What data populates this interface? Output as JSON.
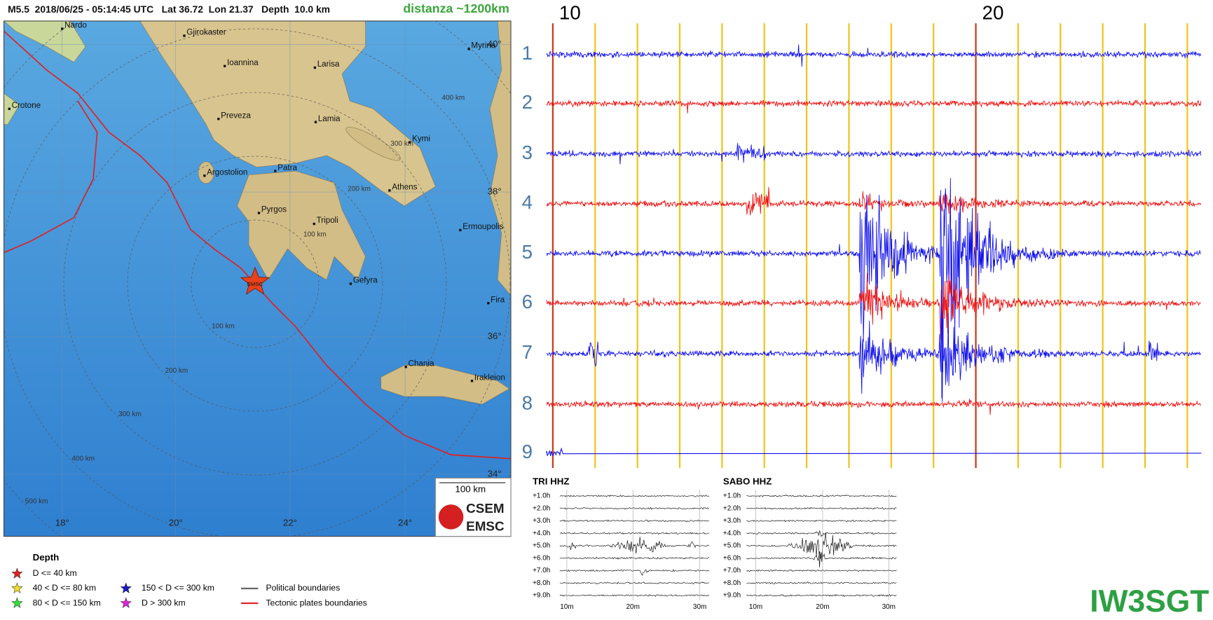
{
  "header": {
    "event": "M5.5  2018/06/25 - 05:14:45 UTC   Lat 36.72  Lon 21.37   Depth  10.0 km",
    "distance": "distanza ~1200km"
  },
  "map": {
    "cities": [
      "Nardo",
      "Gjirokaster",
      "Myrina",
      "Ioannina",
      "Larisa",
      "Crotone",
      "Preveza",
      "Lamia",
      "Kymi",
      "Argostolion",
      "Patra",
      "Athens",
      "Pyrgos",
      "Tripoli",
      "Ermoupolis",
      "Gefyra",
      "Fira",
      "Chania",
      "Irakleion"
    ],
    "lat_labels": [
      "40°",
      "38°",
      "36°",
      "34°"
    ],
    "lon_labels": [
      "18°",
      "20°",
      "22°",
      "24°"
    ],
    "ring_labels": [
      "400 km",
      "300 km",
      "200 km",
      "100 km",
      "100 km",
      "200 km",
      "300 km",
      "400 km",
      "500 km"
    ],
    "epicenter_label": "EMSC",
    "scale": "100 km",
    "logo": [
      "CSEM",
      "EMSC"
    ]
  },
  "legend": {
    "title": "Depth",
    "stars": [
      "D <= 40 km",
      "40 < D <= 80 km",
      "80 < D <= 150 km",
      "150 < D <= 300 km",
      "D > 300 km"
    ],
    "lines": [
      "Political boundaries",
      "Tectonic plates boundaries"
    ]
  },
  "helicorder": {
    "hour_labels": [
      "10",
      "20"
    ],
    "rows": [
      "1",
      "2",
      "3",
      "4",
      "5",
      "6",
      "7",
      "8",
      "9"
    ]
  },
  "panels": [
    {
      "title": "TRI HHZ",
      "rows": [
        "+1.0h",
        "+2.0h",
        "+3.0h",
        "+4.0h",
        "+5.0h",
        "+6.0h",
        "+7.0h",
        "+8.0h",
        "+9.0h"
      ],
      "minutes": [
        "10m",
        "20m",
        "30m"
      ]
    },
    {
      "title": "SABO HHZ",
      "rows": [
        "+1.0h",
        "+2.0h",
        "+3.0h",
        "+4.0h",
        "+5.0h",
        "+6.0h",
        "+7.0h",
        "+8.0h",
        "+9.0h"
      ],
      "minutes": [
        "10m",
        "20m",
        "30m"
      ]
    }
  ],
  "callsign": "IW3SGT"
}
